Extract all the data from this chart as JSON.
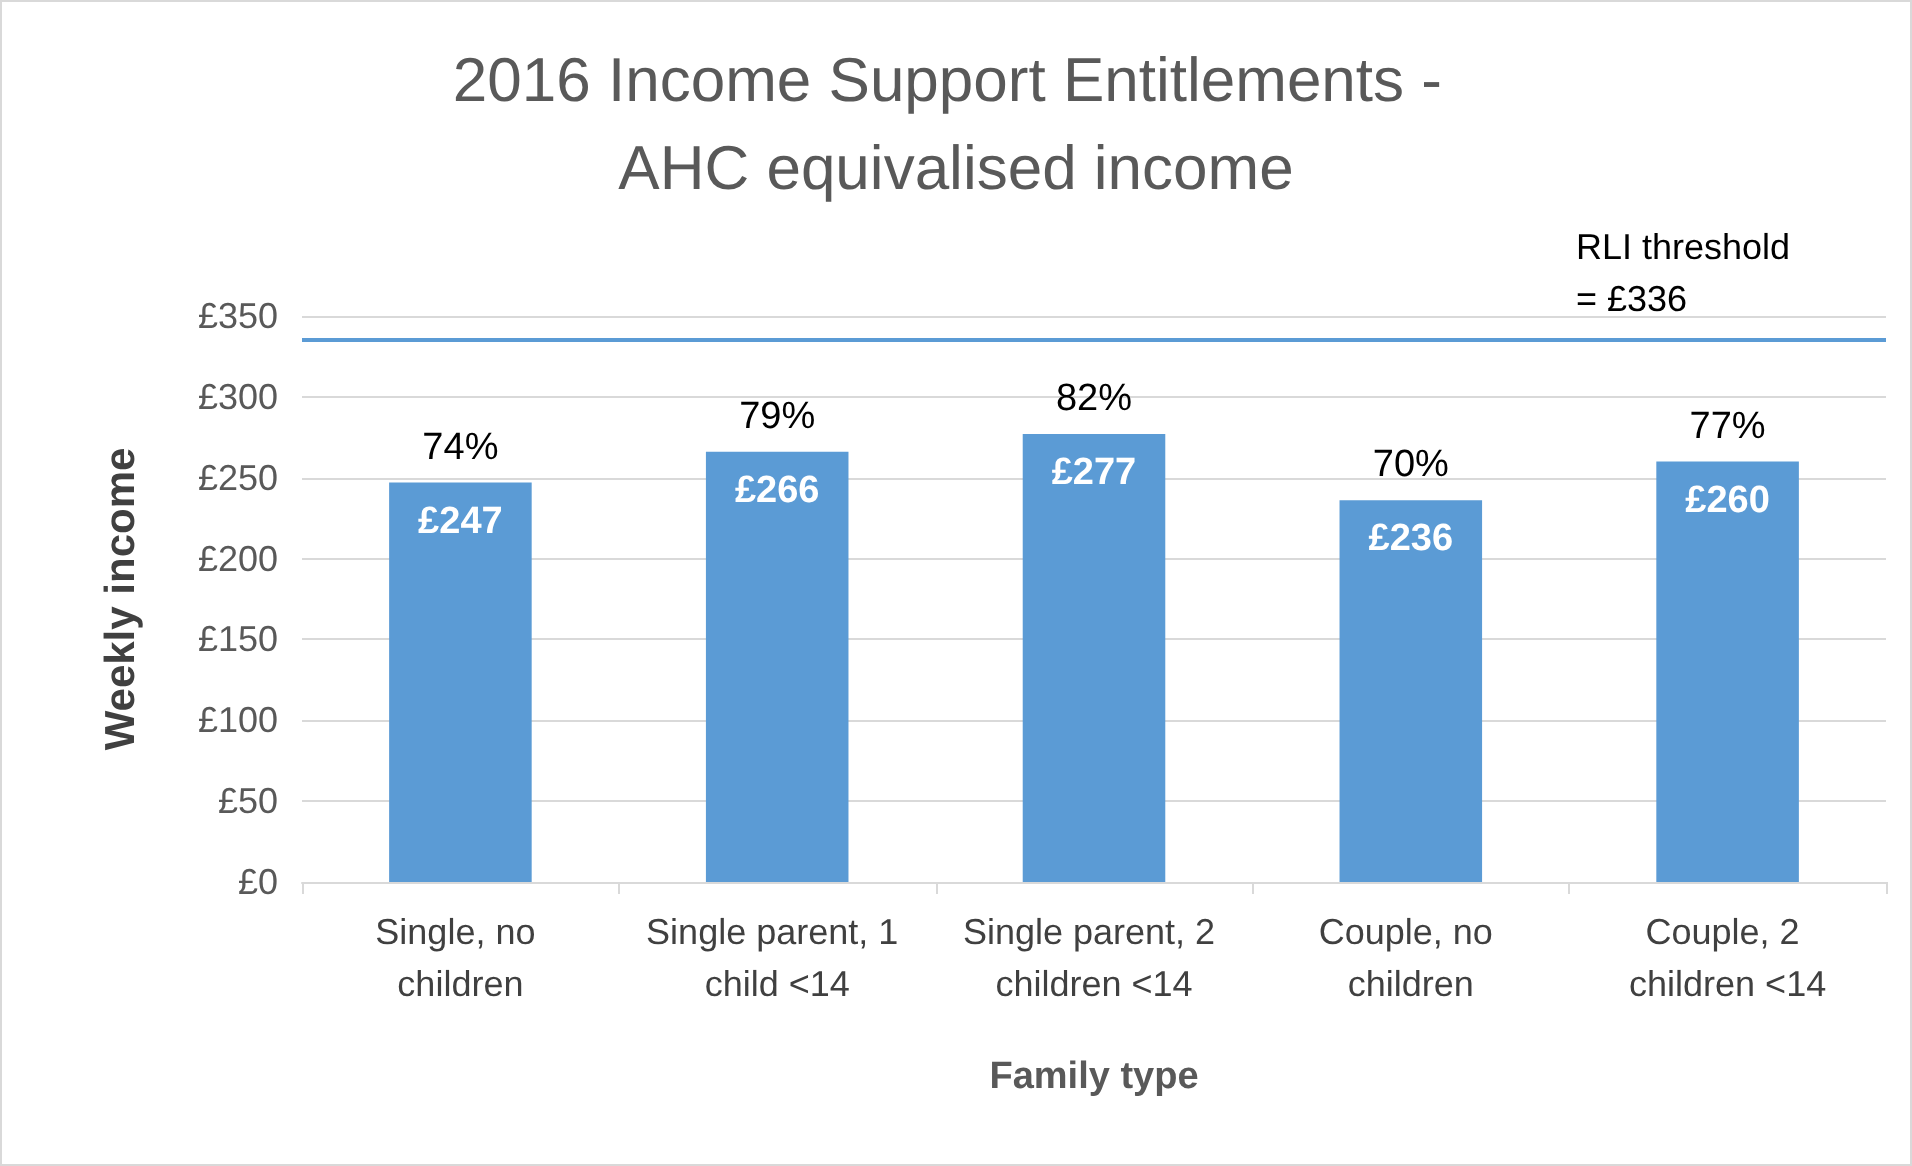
{
  "chart_data": {
    "type": "bar",
    "title": "2016 Income Support Entitlements - AHC equivalised income",
    "xlabel": "Family type",
    "ylabel": "Weekly income",
    "categories": [
      "Single, no children",
      "Single parent, 1 child <14",
      "Single parent, 2 children <14",
      "Couple, no children",
      "Couple, 2 children <14"
    ],
    "series": [
      {
        "color": "#5b9bd5",
        "values": [
          247,
          266,
          277,
          236,
          260
        ],
        "value_labels": [
          "£247",
          "£266",
          "£277",
          "£236",
          "£260"
        ]
      }
    ],
    "annotations": [
      {
        "text": "74%",
        "x": "Single, no children",
        "y": 247
      },
      {
        "text": "79%",
        "x": "Single parent, 1 child <14",
        "y": 266
      },
      {
        "text": "82%",
        "x": "Single parent, 2 children <14",
        "y": 277
      },
      {
        "text": "70%",
        "x": "Couple, no children",
        "y": 236
      },
      {
        "text": "77%",
        "x": "Couple, 2 children <14",
        "y": 260
      }
    ],
    "ref_lines": [
      {
        "axis": "y",
        "value": 336,
        "label": "RLI threshold = £336",
        "color": "#5b9bd5"
      }
    ],
    "ylim": [
      0,
      350
    ],
    "yticks": [
      {
        "value": 0,
        "label": "£0"
      },
      {
        "value": 50,
        "label": "£50"
      },
      {
        "value": 100,
        "label": "£100"
      },
      {
        "value": 150,
        "label": "£150"
      },
      {
        "value": 200,
        "label": "£200"
      },
      {
        "value": 250,
        "label": "£250"
      },
      {
        "value": 300,
        "label": "£300"
      },
      {
        "value": 350,
        "label": "£350"
      }
    ],
    "grid": "y"
  }
}
